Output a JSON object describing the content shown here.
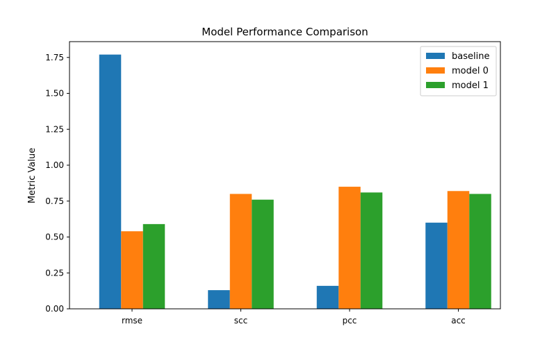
{
  "chart_data": {
    "type": "bar",
    "title": "Model Performance Comparison",
    "xlabel": "",
    "ylabel": "Metric Value",
    "categories": [
      "rmse",
      "scc",
      "pcc",
      "acc"
    ],
    "series": [
      {
        "name": "baseline",
        "color": "#1f77b4",
        "values": [
          1.77,
          0.13,
          0.16,
          0.6
        ]
      },
      {
        "name": "model 0",
        "color": "#ff7f0e",
        "values": [
          0.54,
          0.8,
          0.85,
          0.82
        ]
      },
      {
        "name": "model 1",
        "color": "#2ca02c",
        "values": [
          0.59,
          0.76,
          0.81,
          0.8
        ]
      }
    ],
    "ylim": [
      0,
      1.86
    ],
    "yticks": [
      "0.00",
      "0.25",
      "0.50",
      "0.75",
      "1.00",
      "1.25",
      "1.50",
      "1.75"
    ],
    "grid": false,
    "legend_position": "top-right"
  }
}
